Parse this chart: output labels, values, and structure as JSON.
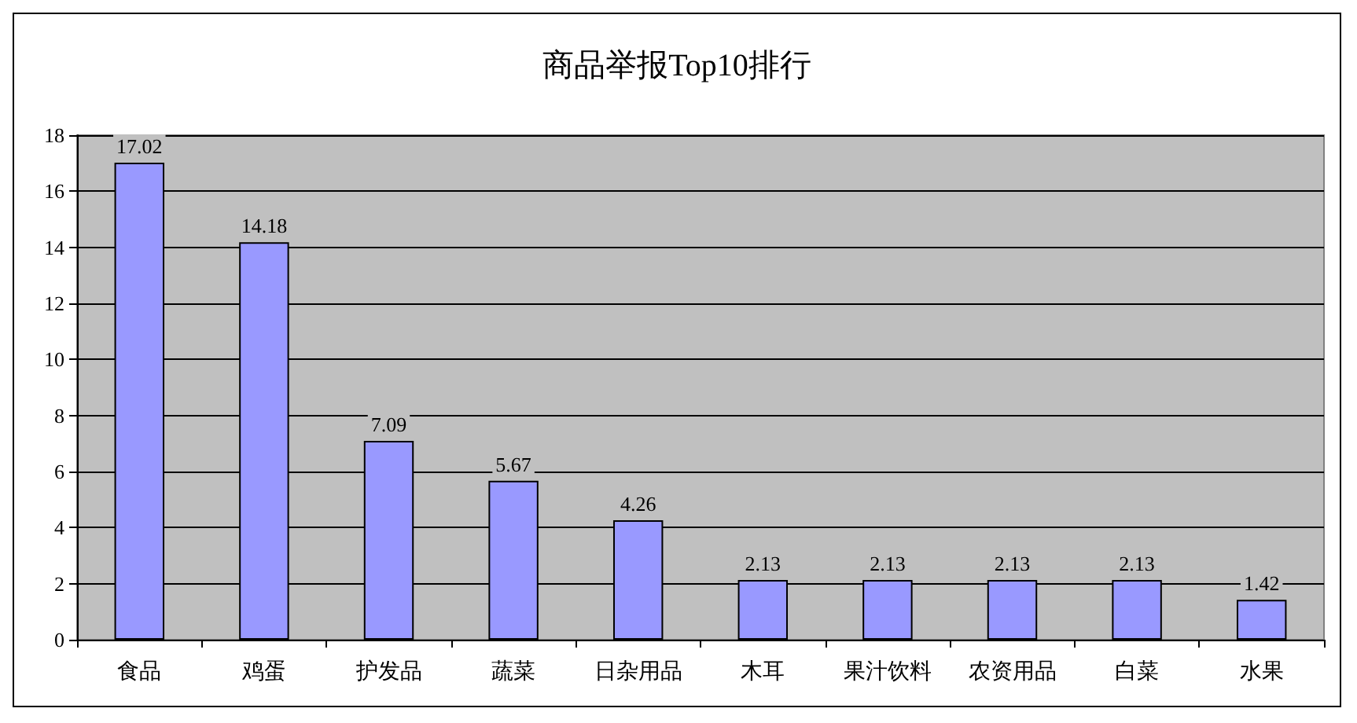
{
  "chart_data": {
    "type": "bar",
    "title": "商品举报Top10排行",
    "categories": [
      "食品",
      "鸡蛋",
      "护发品",
      "蔬菜",
      "日杂用品",
      "木耳",
      "果汁饮料",
      "农资用品",
      "白菜",
      "水果"
    ],
    "values": [
      17.02,
      14.18,
      7.09,
      5.67,
      4.26,
      2.13,
      2.13,
      2.13,
      2.13,
      1.42
    ],
    "color": "#9999ff",
    "ylim": [
      0,
      18
    ],
    "yticks": [
      0,
      2,
      4,
      6,
      8,
      10,
      12,
      14,
      16,
      18
    ],
    "grid": "y",
    "data_labels": true
  }
}
